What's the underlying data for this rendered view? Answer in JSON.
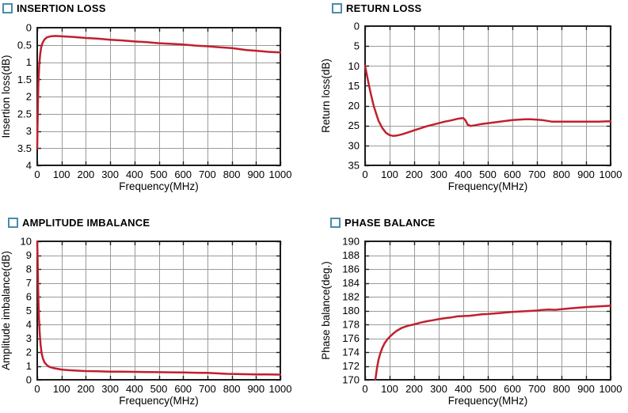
{
  "colors": {
    "curve": "#c0202e",
    "grid": "#9b9b9b",
    "axis": "#1c1c1c",
    "title_marker": "#4a8bad",
    "text": "#000000",
    "background": "#ffffff"
  },
  "chart_data": [
    {
      "id": "insertion-loss",
      "type": "line",
      "title": "INSERTION LOSS",
      "xlabel": "Frequency(MHz)",
      "ylabel": "Insertion loss(dB)",
      "xlim": [
        0,
        1000
      ],
      "ylim": [
        0,
        4
      ],
      "y_inverted": true,
      "xticks": [
        0,
        100,
        200,
        300,
        400,
        500,
        600,
        700,
        800,
        900,
        1000
      ],
      "yticks": [
        0,
        0.5,
        1,
        1.5,
        2,
        2.5,
        3,
        3.5,
        4
      ],
      "grid": true,
      "legend": "none",
      "series": [
        {
          "name": "insertion-loss",
          "color": "#c0202e",
          "x": [
            0,
            1,
            3,
            5,
            8,
            12,
            16,
            22,
            30,
            40,
            55,
            75,
            100,
            150,
            200,
            250,
            300,
            350,
            400,
            450,
            500,
            550,
            600,
            650,
            700,
            750,
            800,
            830,
            860,
            900,
            950,
            1000
          ],
          "y": [
            3.5,
            3.0,
            2.2,
            1.6,
            1.1,
            0.78,
            0.58,
            0.44,
            0.34,
            0.28,
            0.25,
            0.24,
            0.25,
            0.27,
            0.3,
            0.32,
            0.35,
            0.37,
            0.4,
            0.42,
            0.45,
            0.47,
            0.49,
            0.52,
            0.54,
            0.57,
            0.59,
            0.62,
            0.65,
            0.67,
            0.7,
            0.72
          ]
        }
      ]
    },
    {
      "id": "return-loss",
      "type": "line",
      "title": "RETURN LOSS",
      "xlabel": "Frequency(MHz)",
      "ylabel": "Return loss(dB)",
      "xlim": [
        0,
        1000
      ],
      "ylim": [
        0,
        35
      ],
      "y_inverted": true,
      "xticks": [
        0,
        100,
        200,
        300,
        400,
        500,
        600,
        700,
        800,
        900,
        1000
      ],
      "yticks": [
        0,
        5,
        10,
        15,
        20,
        25,
        30,
        35
      ],
      "grid": true,
      "legend": "none",
      "series": [
        {
          "name": "return-loss",
          "color": "#c0202e",
          "x": [
            0,
            8,
            16,
            25,
            35,
            45,
            55,
            70,
            85,
            100,
            115,
            130,
            150,
            175,
            200,
            225,
            250,
            275,
            300,
            325,
            350,
            370,
            385,
            400,
            408,
            418,
            430,
            450,
            475,
            500,
            525,
            550,
            575,
            600,
            625,
            650,
            675,
            700,
            720,
            740,
            760,
            780,
            800,
            850,
            900,
            950,
            1000
          ],
          "y": [
            10,
            12.5,
            15,
            17.5,
            20,
            22,
            23.8,
            25.6,
            26.8,
            27.4,
            27.6,
            27.5,
            27.2,
            26.7,
            26.2,
            25.7,
            25.2,
            24.8,
            24.4,
            24.0,
            23.7,
            23.4,
            23.2,
            23.1,
            23.6,
            24.8,
            25.1,
            24.9,
            24.6,
            24.4,
            24.2,
            24.0,
            23.8,
            23.6,
            23.5,
            23.4,
            23.4,
            23.5,
            23.6,
            23.8,
            24.0,
            24.0,
            24.0,
            24.0,
            24.0,
            24.0,
            23.9
          ]
        }
      ]
    },
    {
      "id": "amplitude-imbalance",
      "type": "line",
      "title": "AMPLITUDE IMBALANCE",
      "xlabel": "Frequency(MHz)",
      "ylabel": "Amplitude imbalance(dB)",
      "xlim": [
        0,
        1000
      ],
      "ylim": [
        0,
        10
      ],
      "y_inverted": false,
      "xticks": [
        0,
        100,
        200,
        300,
        400,
        500,
        600,
        700,
        800,
        900,
        1000
      ],
      "yticks": [
        0,
        1,
        2,
        3,
        4,
        5,
        6,
        7,
        8,
        9,
        10
      ],
      "grid": true,
      "legend": "none",
      "series": [
        {
          "name": "amplitude-imbalance",
          "color": "#c0202e",
          "x": [
            0,
            2,
            4,
            7,
            10,
            14,
            18,
            23,
            30,
            40,
            50,
            65,
            80,
            100,
            125,
            150,
            200,
            250,
            300,
            350,
            400,
            450,
            500,
            550,
            600,
            650,
            700,
            740,
            780,
            820,
            860,
            900,
            950,
            1000
          ],
          "y": [
            10,
            8.5,
            6.5,
            4.6,
            3.4,
            2.5,
            1.95,
            1.55,
            1.25,
            1.05,
            0.93,
            0.85,
            0.8,
            0.74,
            0.7,
            0.67,
            0.63,
            0.61,
            0.59,
            0.58,
            0.57,
            0.56,
            0.55,
            0.54,
            0.53,
            0.51,
            0.5,
            0.46,
            0.43,
            0.41,
            0.4,
            0.39,
            0.38,
            0.37
          ]
        }
      ]
    },
    {
      "id": "phase-balance",
      "type": "line",
      "title": "PHASE BALANCE",
      "xlabel": "Frequency(MHz)",
      "ylabel": "Phase balance(deg.)",
      "xlim": [
        0,
        1000
      ],
      "ylim": [
        170,
        190
      ],
      "y_inverted": false,
      "xticks": [
        0,
        100,
        200,
        300,
        400,
        500,
        600,
        700,
        800,
        900,
        1000
      ],
      "yticks": [
        170,
        172,
        174,
        176,
        178,
        180,
        182,
        184,
        186,
        188,
        190
      ],
      "grid": true,
      "legend": "none",
      "series": [
        {
          "name": "phase-balance",
          "color": "#c0202e",
          "x": [
            42,
            48,
            55,
            62,
            70,
            80,
            90,
            100,
            115,
            130,
            150,
            175,
            200,
            225,
            250,
            275,
            300,
            325,
            350,
            375,
            400,
            425,
            450,
            475,
            500,
            550,
            600,
            650,
            700,
            725,
            750,
            775,
            800,
            850,
            900,
            950,
            1000
          ],
          "y": [
            170,
            171.6,
            172.9,
            173.8,
            174.6,
            175.3,
            175.8,
            176.2,
            176.7,
            177.1,
            177.5,
            177.8,
            178.0,
            178.25,
            178.45,
            178.6,
            178.75,
            178.9,
            179.0,
            179.15,
            179.2,
            179.25,
            179.35,
            179.45,
            179.5,
            179.65,
            179.8,
            179.9,
            180.0,
            180.1,
            180.15,
            180.1,
            180.2,
            180.35,
            180.5,
            180.6,
            180.7
          ]
        }
      ]
    }
  ]
}
